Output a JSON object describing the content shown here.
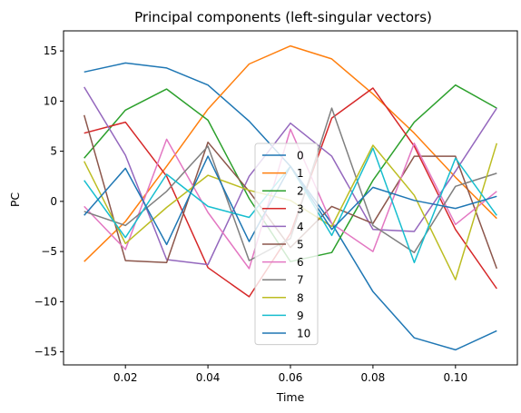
{
  "chart_data": {
    "type": "line",
    "title": "Principal components (left-singular vectors)",
    "xlabel": "Time",
    "ylabel": "PC",
    "xlim": [
      0.005,
      0.115
    ],
    "ylim": [
      -16.3,
      17
    ],
    "xticks": [
      0.02,
      0.04,
      0.06,
      0.08,
      0.1
    ],
    "xtick_labels": [
      "0.02",
      "0.04",
      "0.06",
      "0.08",
      "0.10"
    ],
    "yticks": [
      -15,
      -10,
      -5,
      0,
      5,
      10,
      15
    ],
    "ytick_labels": [
      "−15",
      "−10",
      "−5",
      "0",
      "5",
      "10",
      "15"
    ],
    "grid": false,
    "legend_position": "lower center",
    "x": [
      0.01,
      0.02,
      0.03,
      0.04,
      0.05,
      0.06,
      0.07,
      0.08,
      0.09,
      0.1,
      0.11
    ],
    "series": [
      {
        "name": "0",
        "color": "#1f77b4",
        "values": [
          12.9,
          13.8,
          13.3,
          11.6,
          8.0,
          3.5,
          -2.2,
          -9.0,
          -13.6,
          -14.8,
          -12.9
        ]
      },
      {
        "name": "1",
        "color": "#ff7f0e",
        "values": [
          -6.0,
          -2.0,
          3.5,
          9.2,
          13.7,
          15.5,
          14.2,
          10.7,
          6.8,
          2.4,
          -1.7
        ]
      },
      {
        "name": "2",
        "color": "#2ca02c",
        "values": [
          4.3,
          9.1,
          11.2,
          8.1,
          0.3,
          -6.0,
          -5.1,
          2.1,
          7.9,
          11.6,
          9.3
        ]
      },
      {
        "name": "3",
        "color": "#d62728",
        "values": [
          6.8,
          7.9,
          2.5,
          -6.6,
          -9.5,
          -3.2,
          8.3,
          11.3,
          5.5,
          -2.8,
          -8.7
        ]
      },
      {
        "name": "4",
        "color": "#9467bd",
        "values": [
          11.4,
          4.6,
          -5.8,
          -6.3,
          2.5,
          7.8,
          4.5,
          -2.8,
          -3.0,
          3.0,
          9.3
        ]
      },
      {
        "name": "5",
        "color": "#8c564b",
        "values": [
          8.6,
          -5.9,
          -6.1,
          5.9,
          1.0,
          -4.6,
          -0.5,
          -2.2,
          4.5,
          4.5,
          -6.7
        ]
      },
      {
        "name": "6",
        "color": "#e377c2",
        "values": [
          -0.5,
          -4.8,
          6.2,
          -1.1,
          -6.7,
          7.2,
          -2.2,
          -5.0,
          5.8,
          -2.3,
          1.0
        ]
      },
      {
        "name": "7",
        "color": "#7f7f7f",
        "values": [
          -1.0,
          -2.4,
          1.0,
          5.5,
          -5.9,
          -3.7,
          9.3,
          -2.4,
          -5.1,
          1.5,
          2.8
        ]
      },
      {
        "name": "8",
        "color": "#bcbd22",
        "values": [
          4.0,
          -4.2,
          -0.6,
          2.6,
          1.1,
          0.1,
          -2.5,
          5.6,
          0.6,
          -7.8,
          5.8
        ]
      },
      {
        "name": "9",
        "color": "#17becf",
        "values": [
          2.1,
          -3.6,
          2.7,
          -0.5,
          -1.6,
          3.5,
          -3.4,
          5.3,
          -6.1,
          4.3,
          -1.4
        ]
      },
      {
        "name": "10",
        "color": "#1f77b4",
        "values": [
          -1.4,
          3.3,
          -4.3,
          4.5,
          -4.0,
          3.5,
          -2.8,
          1.4,
          0.1,
          -0.7,
          0.5
        ]
      }
    ]
  }
}
